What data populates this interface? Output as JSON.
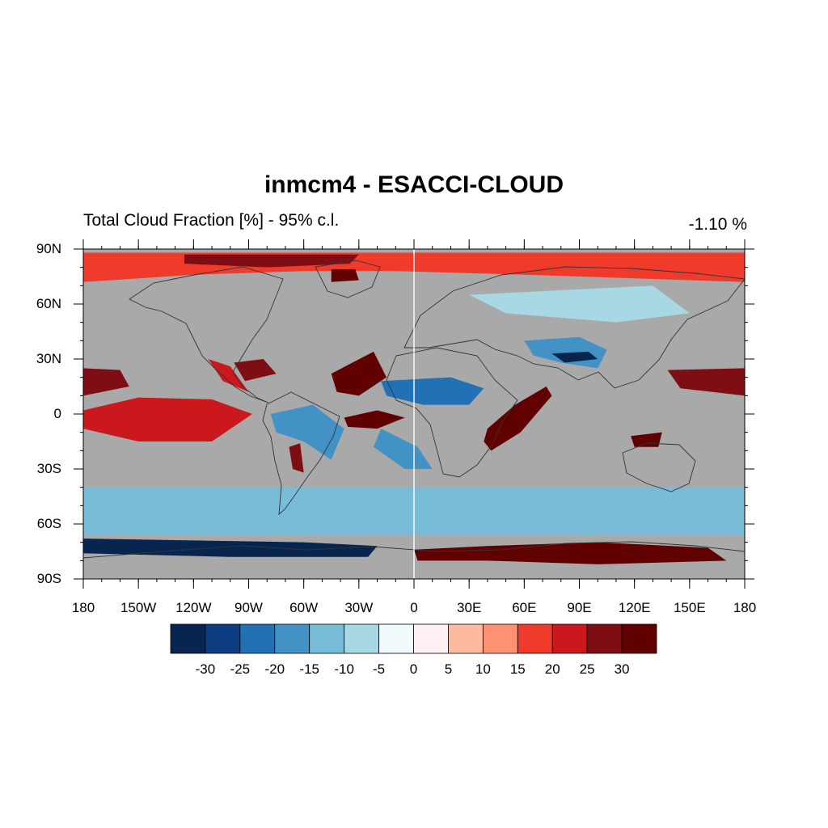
{
  "title": "inmcm4 - ESACCI-CLOUD",
  "subtitle": "Total Cloud Fraction [%] - 95% c.l.",
  "global_mean": "-1.10 %",
  "map": {
    "projection": "cylindrical equidistant",
    "lon_range": [
      -180,
      180
    ],
    "lat_range": [
      -90,
      90
    ],
    "land_outline_color": "#333333",
    "not_significant_color": "#a9a9a9",
    "lat_ticks": [
      {
        "value": 90,
        "label": "90N"
      },
      {
        "value": 60,
        "label": "60N"
      },
      {
        "value": 30,
        "label": "30N"
      },
      {
        "value": 0,
        "label": "0"
      },
      {
        "value": -30,
        "label": "30S"
      },
      {
        "value": -60,
        "label": "60S"
      },
      {
        "value": -90,
        "label": "90S"
      }
    ],
    "lon_ticks": [
      {
        "value": -180,
        "label": "180"
      },
      {
        "value": -150,
        "label": "150W"
      },
      {
        "value": -120,
        "label": "120W"
      },
      {
        "value": -90,
        "label": "90W"
      },
      {
        "value": -60,
        "label": "60W"
      },
      {
        "value": -30,
        "label": "30W"
      },
      {
        "value": 0,
        "label": "0"
      },
      {
        "value": 30,
        "label": "30E"
      },
      {
        "value": 60,
        "label": "60E"
      },
      {
        "value": 90,
        "label": "90E"
      },
      {
        "value": 120,
        "label": "120E"
      },
      {
        "value": 150,
        "label": "150E"
      },
      {
        "value": 180,
        "label": "180"
      }
    ],
    "field_regions": [
      {
        "name": "arctic-band",
        "level": 15,
        "polygon": [
          [
            -180,
            88
          ],
          [
            180,
            88
          ],
          [
            180,
            72
          ],
          [
            60,
            76
          ],
          [
            -10,
            78
          ],
          [
            -60,
            78
          ],
          [
            -120,
            76
          ],
          [
            -180,
            72
          ]
        ]
      },
      {
        "name": "arctic-canada",
        "level": 25,
        "polygon": [
          [
            -125,
            87
          ],
          [
            -30,
            87
          ],
          [
            -35,
            82
          ],
          [
            -80,
            80
          ],
          [
            -125,
            82
          ]
        ]
      },
      {
        "name": "greenland-red",
        "level": 30,
        "polygon": [
          [
            -45,
            79
          ],
          [
            -32,
            79
          ],
          [
            -30,
            73
          ],
          [
            -45,
            72
          ]
        ]
      },
      {
        "name": "equatorial-pacific",
        "level": 30,
        "polygon": [
          [
            -172,
            -2
          ],
          [
            -150,
            5
          ],
          [
            -120,
            6
          ],
          [
            -95,
            -2
          ],
          [
            -120,
            -10
          ],
          [
            -150,
            -10
          ],
          [
            -172,
            -7
          ]
        ]
      },
      {
        "name": "equatorial-pacific-outer",
        "level": 20,
        "polygon": [
          [
            -180,
            2
          ],
          [
            -150,
            9
          ],
          [
            -110,
            8
          ],
          [
            -88,
            0
          ],
          [
            -110,
            -15
          ],
          [
            -150,
            -15
          ],
          [
            -180,
            -8
          ]
        ]
      },
      {
        "name": "pacific-north-red",
        "level": 25,
        "polygon": [
          [
            -180,
            25
          ],
          [
            -160,
            24
          ],
          [
            -155,
            15
          ],
          [
            -180,
            10
          ]
        ]
      },
      {
        "name": "west-pacific-red",
        "level": 25,
        "polygon": [
          [
            138,
            24
          ],
          [
            180,
            25
          ],
          [
            180,
            10
          ],
          [
            145,
            14
          ]
        ]
      },
      {
        "name": "gulf-mexico",
        "level": 25,
        "polygon": [
          [
            -98,
            28
          ],
          [
            -82,
            30
          ],
          [
            -75,
            22
          ],
          [
            -92,
            18
          ]
        ]
      },
      {
        "name": "central-america-red",
        "level": 20,
        "polygon": [
          [
            -112,
            30
          ],
          [
            -100,
            26
          ],
          [
            -90,
            12
          ],
          [
            -104,
            18
          ]
        ]
      },
      {
        "name": "atlantic-north-red",
        "level": 30,
        "polygon": [
          [
            -45,
            22
          ],
          [
            -22,
            34
          ],
          [
            -15,
            20
          ],
          [
            -30,
            10
          ],
          [
            -42,
            12
          ]
        ]
      },
      {
        "name": "atlantic-eq-red",
        "level": 30,
        "polygon": [
          [
            -38,
            -2
          ],
          [
            -20,
            2
          ],
          [
            -5,
            -2
          ],
          [
            -20,
            -8
          ],
          [
            -36,
            -7
          ]
        ]
      },
      {
        "name": "argentina-red",
        "level": 25,
        "polygon": [
          [
            -68,
            -18
          ],
          [
            -62,
            -16
          ],
          [
            -60,
            -32
          ],
          [
            -66,
            -30
          ]
        ]
      },
      {
        "name": "east-africa-red",
        "level": 30,
        "polygon": [
          [
            40,
            -8
          ],
          [
            55,
            5
          ],
          [
            72,
            15
          ],
          [
            75,
            10
          ],
          [
            58,
            -10
          ],
          [
            42,
            -20
          ],
          [
            38,
            -15
          ]
        ]
      },
      {
        "name": "australia-red",
        "level": 30,
        "polygon": [
          [
            118,
            -12
          ],
          [
            135,
            -10
          ],
          [
            133,
            -18
          ],
          [
            120,
            -18
          ]
        ]
      },
      {
        "name": "antarctic-red",
        "level": 30,
        "polygon": [
          [
            0,
            -74
          ],
          [
            40,
            -72
          ],
          [
            100,
            -70
          ],
          [
            160,
            -73
          ],
          [
            170,
            -80
          ],
          [
            100,
            -82
          ],
          [
            40,
            -80
          ],
          [
            2,
            -80
          ]
        ]
      },
      {
        "name": "north-africa-blue",
        "level": -25,
        "polygon": [
          [
            -18,
            18
          ],
          [
            20,
            20
          ],
          [
            38,
            14
          ],
          [
            30,
            5
          ],
          [
            5,
            5
          ],
          [
            -15,
            10
          ]
        ]
      },
      {
        "name": "south-atlantic-blue",
        "level": -20,
        "polygon": [
          [
            -18,
            -8
          ],
          [
            2,
            -18
          ],
          [
            10,
            -30
          ],
          [
            -5,
            -30
          ],
          [
            -22,
            -18
          ]
        ]
      },
      {
        "name": "south-america-blue",
        "level": -20,
        "polygon": [
          [
            -78,
            0
          ],
          [
            -55,
            5
          ],
          [
            -38,
            -8
          ],
          [
            -45,
            -25
          ],
          [
            -60,
            -15
          ],
          [
            -75,
            -10
          ]
        ]
      },
      {
        "name": "southern-ocean-blue",
        "level": -15,
        "polygon": [
          [
            -180,
            -40
          ],
          [
            180,
            -40
          ],
          [
            180,
            -66
          ],
          [
            -180,
            -66
          ]
        ]
      },
      {
        "name": "antarctic-coast-blue",
        "level": -30,
        "polygon": [
          [
            -180,
            -68
          ],
          [
            -60,
            -70
          ],
          [
            -20,
            -72
          ],
          [
            -25,
            -78
          ],
          [
            -100,
            -78
          ],
          [
            -180,
            -76
          ]
        ]
      },
      {
        "name": "asia-blue",
        "level": -20,
        "polygon": [
          [
            60,
            40
          ],
          [
            90,
            42
          ],
          [
            105,
            35
          ],
          [
            100,
            25
          ],
          [
            80,
            28
          ],
          [
            65,
            32
          ]
        ]
      },
      {
        "name": "tibet-blue",
        "level": -30,
        "polygon": [
          [
            75,
            33
          ],
          [
            95,
            34
          ],
          [
            100,
            30
          ],
          [
            82,
            28
          ]
        ]
      },
      {
        "name": "siberia-blue",
        "level": -10,
        "polygon": [
          [
            30,
            65
          ],
          [
            130,
            70
          ],
          [
            150,
            55
          ],
          [
            110,
            50
          ],
          [
            50,
            55
          ]
        ]
      }
    ]
  },
  "colorbar": {
    "colors": [
      "#08254f",
      "#0d3d80",
      "#2271b5",
      "#4292c6",
      "#79bcd8",
      "#a8d8e3",
      "#f1fbfd",
      "#fff0f3",
      "#fcbba1",
      "#fc9272",
      "#ef3b2c",
      "#cb181d",
      "#7f0e14",
      "#610000"
    ],
    "labels": [
      "-30",
      "-25",
      "-20",
      "-15",
      "-10",
      "-5",
      "0",
      "5",
      "10",
      "15",
      "20",
      "25",
      "30"
    ]
  }
}
